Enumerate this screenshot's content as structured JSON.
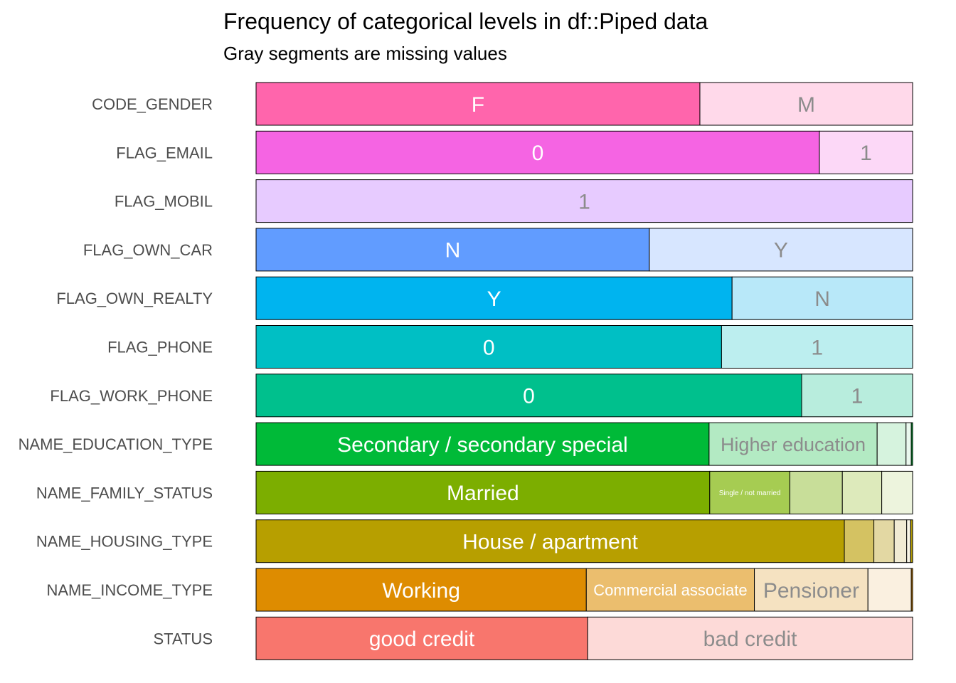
{
  "chart_data": {
    "type": "stacked-bar",
    "title": "Frequency of categorical levels in df::Piped data",
    "subtitle": "Gray segments are missing values",
    "orientation": "horizontal",
    "xlim": [
      0,
      1
    ],
    "grid": false,
    "legend": "none",
    "variables": [
      {
        "name": "CODE_GENDER",
        "segments": [
          {
            "level": "F",
            "share": 0.676,
            "color": "#FF65AC",
            "label": "F"
          },
          {
            "level": "M",
            "share": 0.324,
            "color": "#FFD9EA",
            "label": "M"
          }
        ]
      },
      {
        "name": "FLAG_EMAIL",
        "segments": [
          {
            "level": "0",
            "share": 0.858,
            "color": "#F564E3",
            "label": "0"
          },
          {
            "level": "1",
            "share": 0.142,
            "color": "#FCD8F7",
            "label": "1"
          }
        ]
      },
      {
        "name": "FLAG_MOBIL",
        "segments": [
          {
            "level": "1",
            "share": 1.0,
            "color": "#E7CBFF",
            "label": "1"
          }
        ]
      },
      {
        "name": "FLAG_OWN_CAR",
        "segments": [
          {
            "level": "N",
            "share": 0.599,
            "color": "#619CFF",
            "label": "N"
          },
          {
            "level": "Y",
            "share": 0.401,
            "color": "#D7E6FF",
            "label": "Y"
          }
        ]
      },
      {
        "name": "FLAG_OWN_REALTY",
        "segments": [
          {
            "level": "Y",
            "share": 0.725,
            "color": "#00B4EF",
            "label": "Y"
          },
          {
            "level": "N",
            "share": 0.275,
            "color": "#B8E8F9",
            "label": "N"
          }
        ]
      },
      {
        "name": "FLAG_PHONE",
        "segments": [
          {
            "level": "0",
            "share": 0.709,
            "color": "#00BFC4",
            "label": "0"
          },
          {
            "level": "1",
            "share": 0.291,
            "color": "#BCEEEF",
            "label": "1"
          }
        ]
      },
      {
        "name": "FLAG_WORK_PHONE",
        "segments": [
          {
            "level": "0",
            "share": 0.831,
            "color": "#00C08D",
            "label": "0"
          },
          {
            "level": "1",
            "share": 0.169,
            "color": "#B8EDDD",
            "label": "1"
          }
        ]
      },
      {
        "name": "NAME_EDUCATION_TYPE",
        "segments": [
          {
            "level": "Secondary / secondary special",
            "share": 0.69,
            "color": "#00BA38",
            "label": "Secondary / secondary special"
          },
          {
            "level": "Higher education",
            "share": 0.256,
            "color": "#B3EAC3",
            "label": "Higher education"
          },
          {
            "level": "",
            "share": 0.044,
            "color": "#D6F3DE",
            "label": ""
          },
          {
            "level": "",
            "share": 0.008,
            "color": "#EAF8EE",
            "label": ""
          },
          {
            "level": "",
            "share": 0.002,
            "color": "#00BA38",
            "label": ""
          }
        ]
      },
      {
        "name": "NAME_FAMILY_STATUS",
        "segments": [
          {
            "level": "Married",
            "share": 0.691,
            "color": "#7CAE00",
            "label": "Married"
          },
          {
            "level": "Single / not married",
            "share": 0.122,
            "color": "#A6CC52",
            "label": "Single / not married"
          },
          {
            "level": "",
            "share": 0.08,
            "color": "#C8DE99",
            "label": ""
          },
          {
            "level": "",
            "share": 0.06,
            "color": "#DDEABB",
            "label": ""
          },
          {
            "level": "",
            "share": 0.047,
            "color": "#EDF4DD",
            "label": ""
          }
        ]
      },
      {
        "name": "NAME_HOUSING_TYPE",
        "segments": [
          {
            "level": "House / apartment",
            "share": 0.896,
            "color": "#B79F00",
            "label": "House / apartment"
          },
          {
            "level": "",
            "share": 0.045,
            "color": "#D4C262",
            "label": ""
          },
          {
            "level": "",
            "share": 0.031,
            "color": "#E3D8A3",
            "label": ""
          },
          {
            "level": "",
            "share": 0.019,
            "color": "#F1EBD3",
            "label": ""
          },
          {
            "level": "",
            "share": 0.006,
            "color": "#F8F4E6",
            "label": ""
          },
          {
            "level": "",
            "share": 0.003,
            "color": "#B79F00",
            "label": ""
          }
        ]
      },
      {
        "name": "NAME_INCOME_TYPE",
        "segments": [
          {
            "level": "Working",
            "share": 0.503,
            "color": "#DE8C00",
            "label": "Working"
          },
          {
            "level": "Commercial associate",
            "share": 0.256,
            "color": "#EBBE6E",
            "label": "Commercial associate"
          },
          {
            "level": "Pensioner",
            "share": 0.173,
            "color": "#F5E2C1",
            "label": "Pensioner"
          },
          {
            "level": "",
            "share": 0.066,
            "color": "#FAF0E0",
            "label": ""
          },
          {
            "level": "",
            "share": 0.002,
            "color": "#DE8C00",
            "label": ""
          }
        ]
      },
      {
        "name": "STATUS",
        "segments": [
          {
            "level": "good credit",
            "share": 0.505,
            "color": "#F8766D",
            "label": "good credit"
          },
          {
            "level": "bad credit",
            "share": 0.495,
            "color": "#FDDAD8",
            "label": "bad credit"
          }
        ]
      }
    ]
  }
}
